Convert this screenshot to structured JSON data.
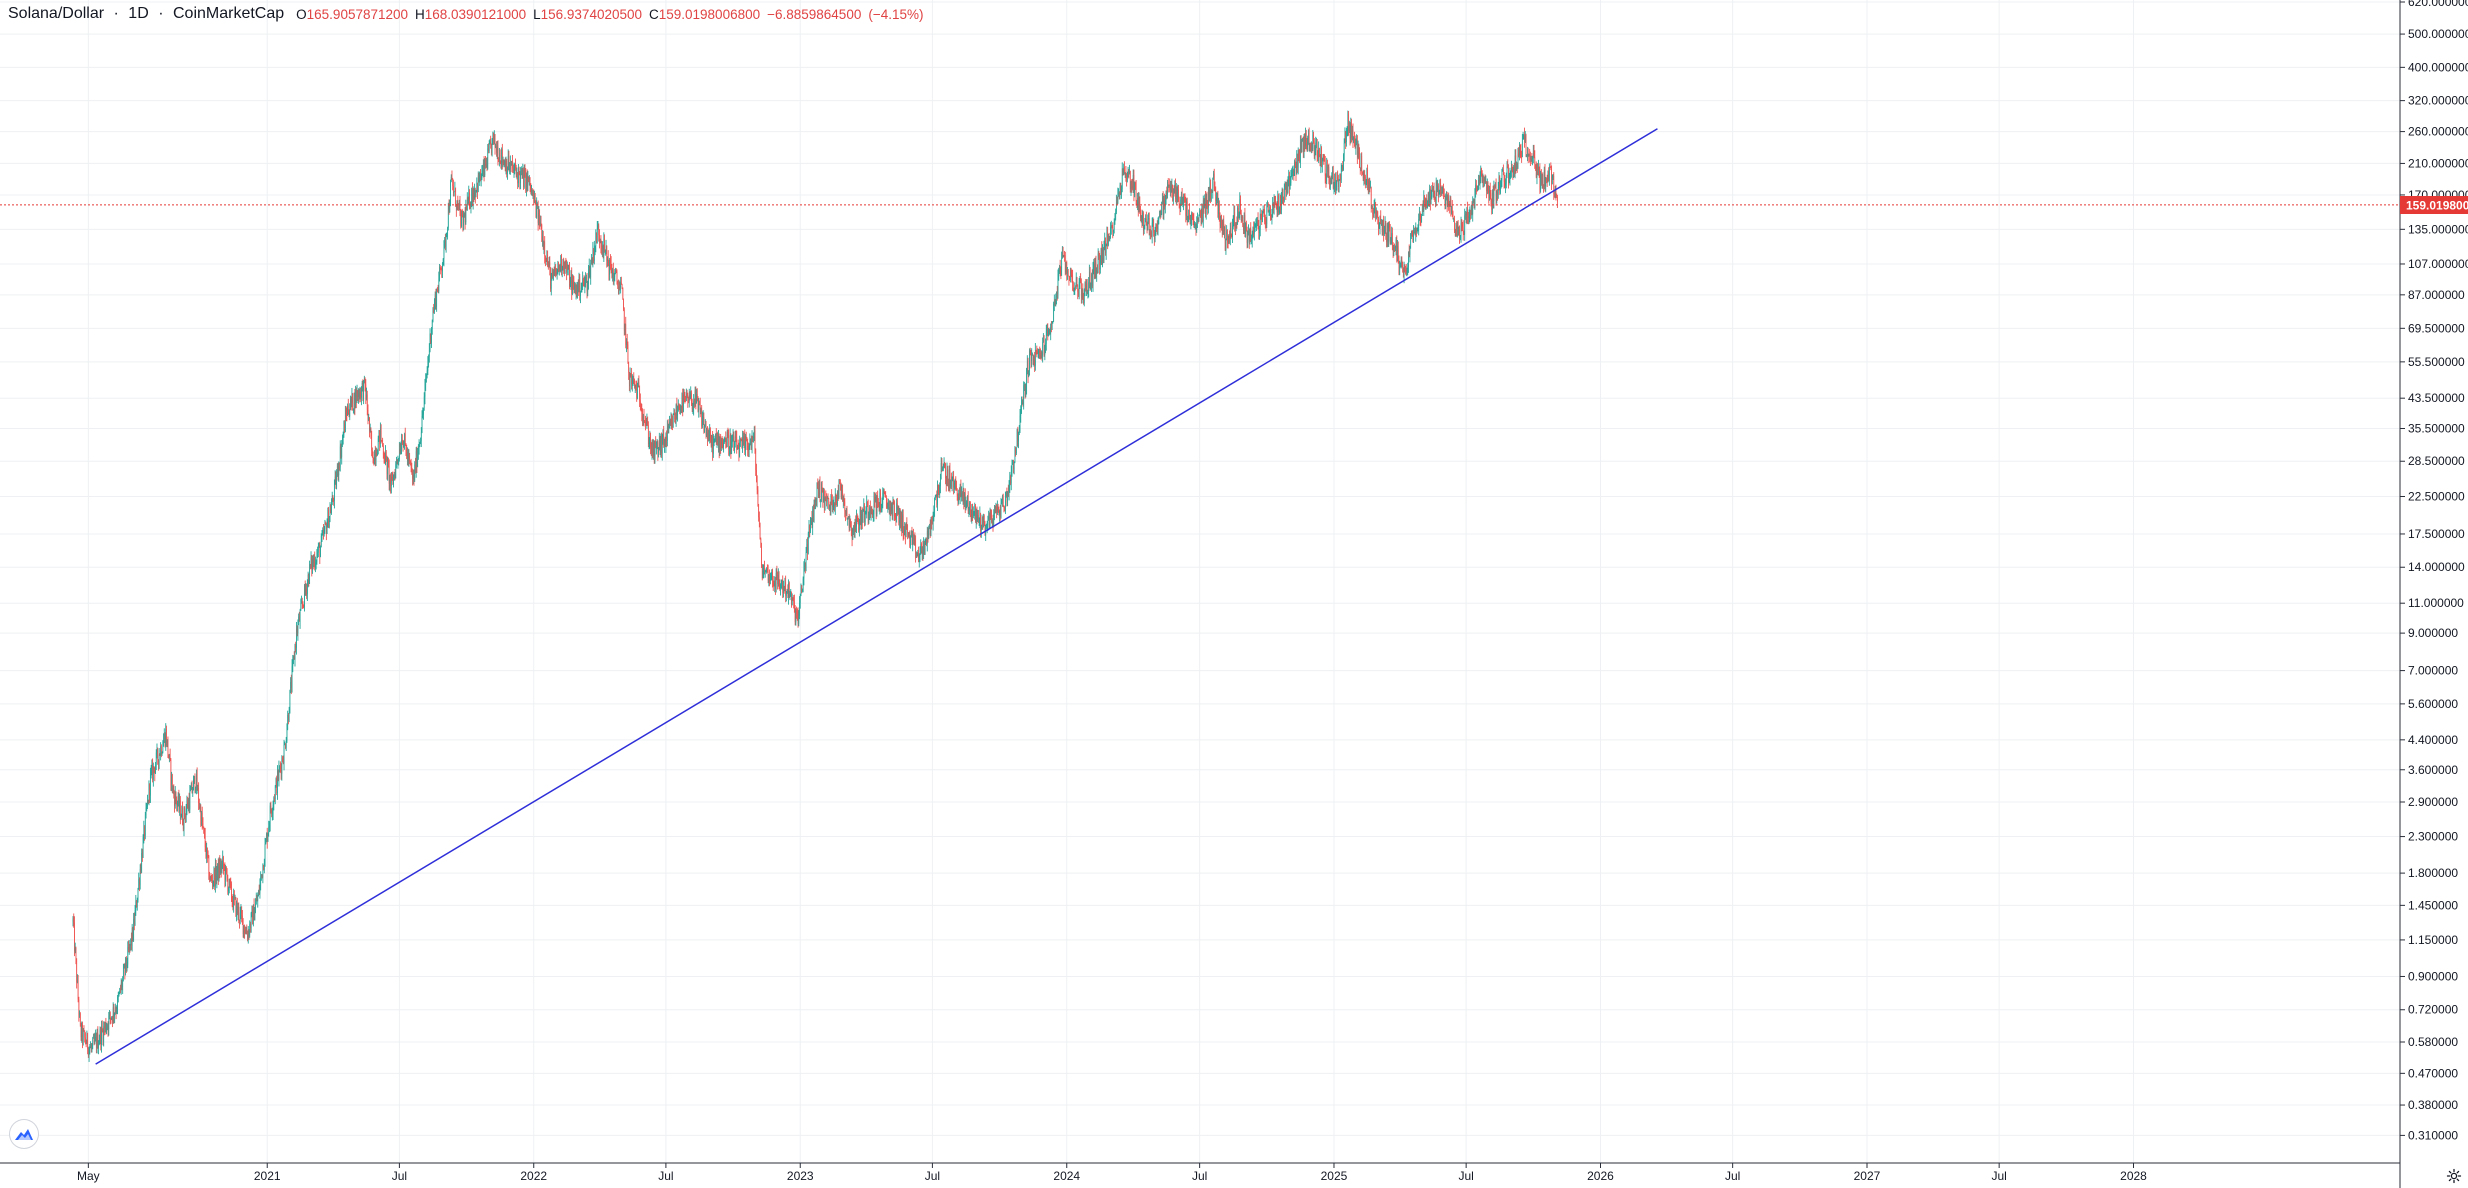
{
  "header": {
    "symbol": "Solana/Dollar",
    "separator": "·",
    "interval": "1D",
    "source": "CoinMarketCap",
    "open_label": "O",
    "open": "165.9057871200",
    "high_label": "H",
    "high": "168.0390121000",
    "low_label": "L",
    "low": "156.9374020500",
    "close_label": "C",
    "close": "159.0198006800",
    "change": "−6.8859864500",
    "change_pct": "(−4.15%)"
  },
  "price_tag": "159.019800",
  "colors": {
    "up": "#26a69a",
    "down": "#ef5350",
    "trendline": "#2f2fd9",
    "price_line": "#e53935",
    "grid": "#eef0f3",
    "axis_text": "#131722",
    "change_text": "#e04343"
  },
  "icons": {
    "logo": "tradingview-logo-icon",
    "settings": "gear-icon"
  },
  "chart_data": {
    "type": "candlestick",
    "title": "Solana/Dollar · 1D · CoinMarketCap",
    "scale": "log",
    "x_axis_labels": [
      "May",
      "2021",
      "Jul",
      "2022",
      "Jul",
      "2023",
      "Jul",
      "2024",
      "Jul",
      "2025",
      "Jul",
      "2026",
      "Jul",
      "2027",
      "Jul",
      "2028"
    ],
    "y_axis_labels": [
      "620.000000",
      "500.000000",
      "400.000000",
      "320.000000",
      "260.000000",
      "210.000000",
      "170.000000",
      "135.000000",
      "107.000000",
      "87.000000",
      "69.500000",
      "55.500000",
      "43.500000",
      "35.500000",
      "28.500000",
      "22.500000",
      "17.500000",
      "14.000000",
      "11.000000",
      "9.000000",
      "7.000000",
      "5.600000",
      "4.400000",
      "3.600000",
      "2.900000",
      "2.300000",
      "1.800000",
      "1.450000",
      "1.150000",
      "0.900000",
      "0.720000",
      "0.580000",
      "0.470000",
      "0.380000",
      "0.310000"
    ],
    "grid": true,
    "last_price": 159.0198,
    "series": [
      {
        "name": "SOL/USD",
        "points": [
          [
            "2020-04-10",
            1.3
          ],
          [
            "2020-04-20",
            0.62
          ],
          [
            "2020-05-05",
            0.55
          ],
          [
            "2020-05-20",
            0.62
          ],
          [
            "2020-06-10",
            0.75
          ],
          [
            "2020-07-01",
            1.2
          ],
          [
            "2020-07-25",
            3.4
          ],
          [
            "2020-08-15",
            4.6
          ],
          [
            "2020-08-25",
            3.1
          ],
          [
            "2020-09-08",
            2.6
          ],
          [
            "2020-09-25",
            3.4
          ],
          [
            "2020-10-15",
            1.7
          ],
          [
            "2020-11-01",
            1.9
          ],
          [
            "2020-11-15",
            1.5
          ],
          [
            "2020-12-05",
            1.2
          ],
          [
            "2020-12-20",
            1.55
          ],
          [
            "2021-01-05",
            2.7
          ],
          [
            "2021-01-25",
            4.2
          ],
          [
            "2021-02-10",
            9.0
          ],
          [
            "2021-03-01",
            14.0
          ],
          [
            "2021-03-15",
            16.0
          ],
          [
            "2021-04-01",
            22.0
          ],
          [
            "2021-04-20",
            40.0
          ],
          [
            "2021-05-05",
            45.0
          ],
          [
            "2021-05-15",
            47.0
          ],
          [
            "2021-05-25",
            29.0
          ],
          [
            "2021-06-05",
            34.0
          ],
          [
            "2021-06-20",
            24.0
          ],
          [
            "2021-07-05",
            34.0
          ],
          [
            "2021-07-20",
            25.0
          ],
          [
            "2021-08-01",
            37.0
          ],
          [
            "2021-08-15",
            75.0
          ],
          [
            "2021-09-01",
            120.0
          ],
          [
            "2021-09-10",
            185.0
          ],
          [
            "2021-09-25",
            140.0
          ],
          [
            "2021-10-05",
            165.0
          ],
          [
            "2021-10-25",
            200.0
          ],
          [
            "2021-11-06",
            245.0
          ],
          [
            "2021-11-20",
            215.0
          ],
          [
            "2021-12-05",
            200.0
          ],
          [
            "2021-12-25",
            185.0
          ],
          [
            "2022-01-10",
            140.0
          ],
          [
            "2022-01-25",
            95.0
          ],
          [
            "2022-02-10",
            110.0
          ],
          [
            "2022-02-25",
            90.0
          ],
          [
            "2022-03-15",
            95.0
          ],
          [
            "2022-03-30",
            135.0
          ],
          [
            "2022-04-15",
            105.0
          ],
          [
            "2022-05-01",
            90.0
          ],
          [
            "2022-05-12",
            50.0
          ],
          [
            "2022-05-25",
            45.0
          ],
          [
            "2022-06-13",
            30.0
          ],
          [
            "2022-07-01",
            33.0
          ],
          [
            "2022-07-20",
            42.0
          ],
          [
            "2022-08-10",
            43.0
          ],
          [
            "2022-09-01",
            32.0
          ],
          [
            "2022-09-20",
            33.0
          ],
          [
            "2022-10-10",
            31.0
          ],
          [
            "2022-10-30",
            33.0
          ],
          [
            "2022-11-09",
            14.0
          ],
          [
            "2022-11-25",
            13.0
          ],
          [
            "2022-12-15",
            12.0
          ],
          [
            "2022-12-29",
            9.8
          ],
          [
            "2023-01-10",
            16.0
          ],
          [
            "2023-01-25",
            24.0
          ],
          [
            "2023-02-10",
            21.0
          ],
          [
            "2023-02-25",
            24.0
          ],
          [
            "2023-03-12",
            18.0
          ],
          [
            "2023-04-05",
            21.0
          ],
          [
            "2023-04-25",
            22.0
          ],
          [
            "2023-05-15",
            20.0
          ],
          [
            "2023-06-12",
            15.0
          ],
          [
            "2023-06-25",
            17.0
          ],
          [
            "2023-07-14",
            27.0
          ],
          [
            "2023-08-01",
            24.0
          ],
          [
            "2023-08-20",
            21.0
          ],
          [
            "2023-09-10",
            18.5
          ],
          [
            "2023-09-25",
            20.0
          ],
          [
            "2023-10-10",
            22.0
          ],
          [
            "2023-10-25",
            33.0
          ],
          [
            "2023-11-10",
            56.0
          ],
          [
            "2023-11-25",
            58.0
          ],
          [
            "2023-12-10",
            70.0
          ],
          [
            "2023-12-25",
            110.0
          ],
          [
            "2024-01-10",
            95.0
          ],
          [
            "2024-01-25",
            88.0
          ],
          [
            "2024-02-10",
            105.0
          ],
          [
            "2024-03-01",
            130.0
          ],
          [
            "2024-03-18",
            200.0
          ],
          [
            "2024-04-01",
            185.0
          ],
          [
            "2024-04-15",
            140.0
          ],
          [
            "2024-05-01",
            135.0
          ],
          [
            "2024-05-20",
            180.0
          ],
          [
            "2024-06-05",
            165.0
          ],
          [
            "2024-06-25",
            135.0
          ],
          [
            "2024-07-20",
            185.0
          ],
          [
            "2024-08-05",
            125.0
          ],
          [
            "2024-08-25",
            155.0
          ],
          [
            "2024-09-06",
            128.0
          ],
          [
            "2024-10-01",
            150.0
          ],
          [
            "2024-10-20",
            165.0
          ],
          [
            "2024-11-12",
            215.0
          ],
          [
            "2024-11-23",
            250.0
          ],
          [
            "2024-12-10",
            230.0
          ],
          [
            "2024-12-25",
            190.0
          ],
          [
            "2025-01-10",
            185.0
          ],
          [
            "2025-01-19",
            280.0
          ],
          [
            "2025-02-01",
            230.0
          ],
          [
            "2025-02-15",
            190.0
          ],
          [
            "2025-03-01",
            140.0
          ],
          [
            "2025-03-20",
            130.0
          ],
          [
            "2025-04-07",
            100.0
          ],
          [
            "2025-04-20",
            135.0
          ],
          [
            "2025-05-10",
            170.0
          ],
          [
            "2025-05-25",
            175.0
          ],
          [
            "2025-06-10",
            155.0
          ],
          [
            "2025-06-22",
            130.0
          ],
          [
            "2025-07-10",
            160.0
          ],
          [
            "2025-07-22",
            195.0
          ],
          [
            "2025-08-05",
            165.0
          ],
          [
            "2025-08-20",
            190.0
          ],
          [
            "2025-09-01",
            200.0
          ],
          [
            "2025-09-18",
            240.0
          ],
          [
            "2025-10-01",
            225.0
          ],
          [
            "2025-10-10",
            185.0
          ],
          [
            "2025-10-25",
            195.0
          ],
          [
            "2025-11-03",
            159.0
          ]
        ]
      }
    ],
    "trendline": {
      "start": [
        "2020-05-11",
        0.5
      ],
      "end": [
        "2026-03-20",
        265.0
      ]
    },
    "x_min": "2020-01-01",
    "x_max": "2028-12-31",
    "y_min": 0.27,
    "y_max": 620.0
  }
}
